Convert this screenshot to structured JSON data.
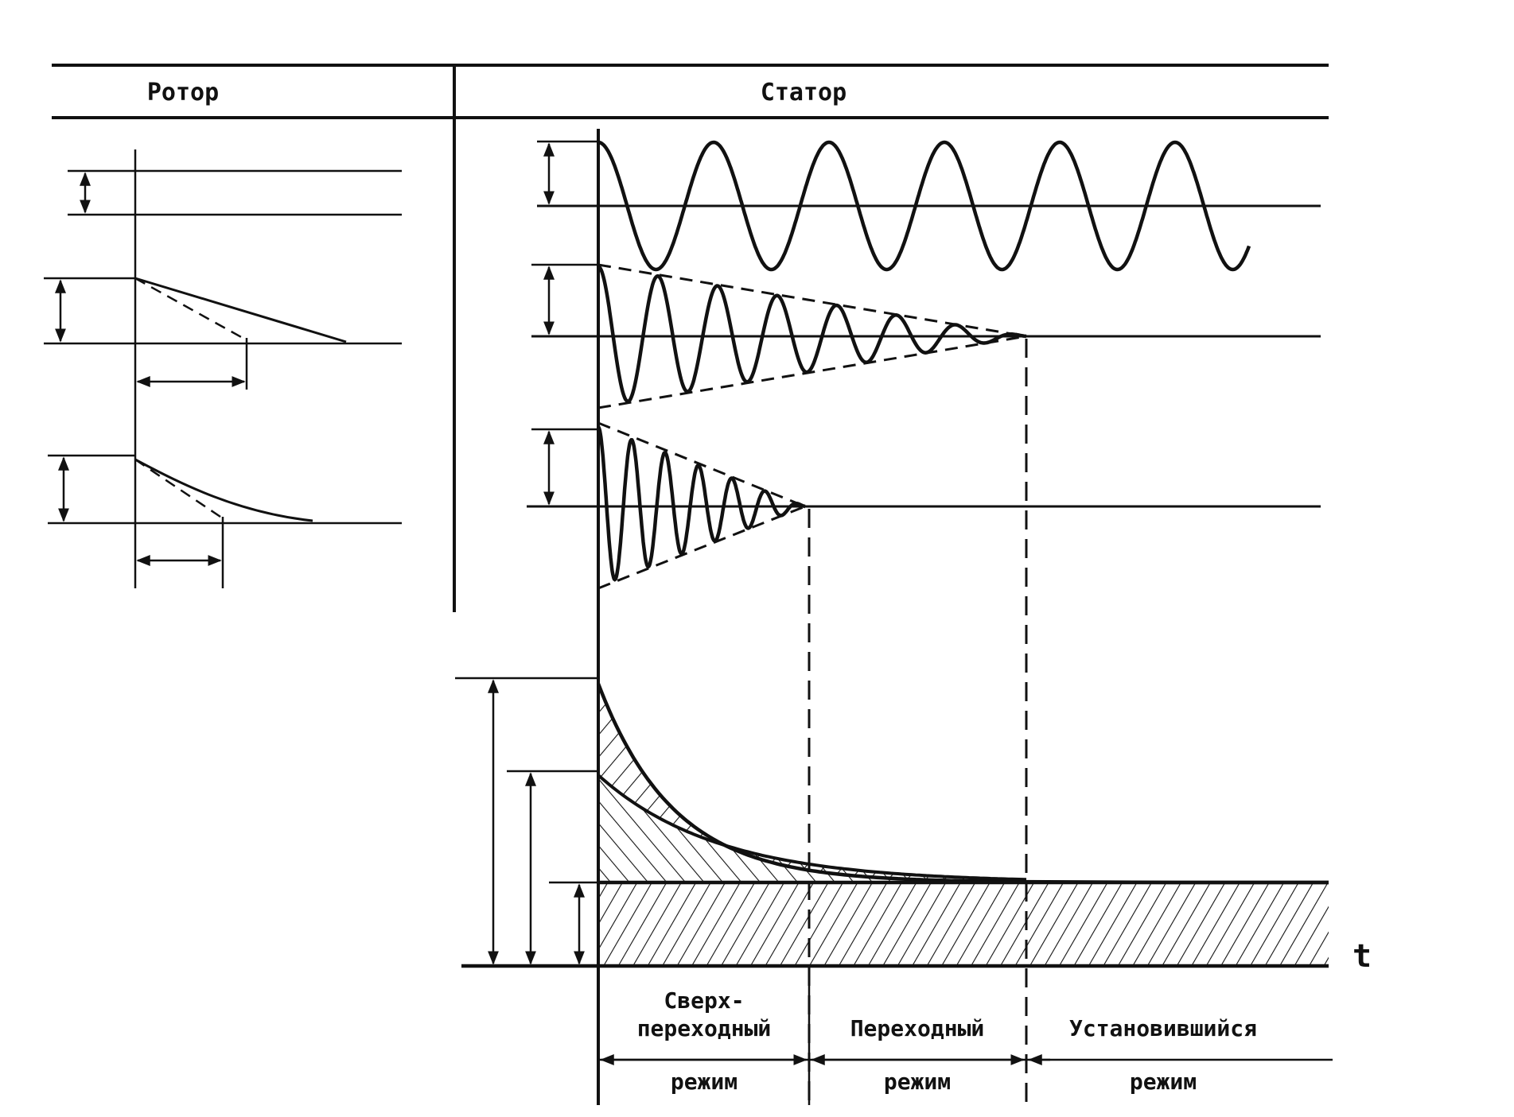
{
  "header": {
    "rotor_label": "Ротор",
    "stator_label": "Статор"
  },
  "axis": {
    "time_label": "t"
  },
  "regimes": [
    {
      "line1": "Сверх-",
      "line2": "переходный",
      "mode": "режим"
    },
    {
      "line1": "",
      "line2": "Переходный",
      "mode": "режим"
    },
    {
      "line1": "",
      "line2": "Установившийся",
      "mode": "режим"
    }
  ],
  "colors": {
    "ink": "#111111",
    "background": "#ffffff"
  }
}
